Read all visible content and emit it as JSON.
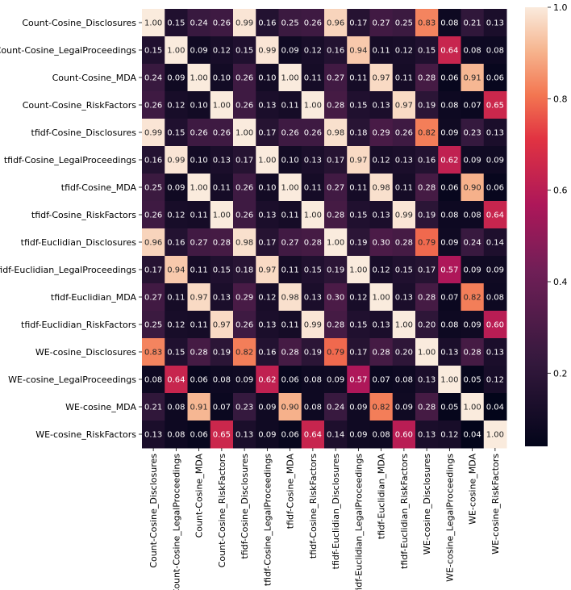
{
  "chart_data": {
    "type": "heatmap",
    "labels": [
      "Count-Cosine_Disclosures",
      "Count-Cosine_LegalProceedings",
      "Count-Cosine_MDA",
      "Count-Cosine_RiskFactors",
      "tfidf-Cosine_Disclosures",
      "tfidf-Cosine_LegalProceedings",
      "tfidf-Cosine_MDA",
      "tfidf-Cosine_RiskFactors",
      "tfidf-Euclidian_Disclosures",
      "tfidf-Euclidian_LegalProceedings",
      "tfidf-Euclidian_MDA",
      "tfidf-Euclidian_RiskFactors",
      "WE-cosine_Disclosures",
      "WE-cosine_LegalProceedings",
      "WE-cosine_MDA",
      "WE-cosine_RiskFactors"
    ],
    "values": [
      [
        1.0,
        0.15,
        0.24,
        0.26,
        0.99,
        0.16,
        0.25,
        0.26,
        0.96,
        0.17,
        0.27,
        0.25,
        0.83,
        0.08,
        0.21,
        0.13
      ],
      [
        0.15,
        1.0,
        0.09,
        0.12,
        0.15,
        0.99,
        0.09,
        0.12,
        0.16,
        0.94,
        0.11,
        0.12,
        0.15,
        0.64,
        0.08,
        0.08
      ],
      [
        0.24,
        0.09,
        1.0,
        0.1,
        0.26,
        0.1,
        1.0,
        0.11,
        0.27,
        0.11,
        0.97,
        0.11,
        0.28,
        0.06,
        0.91,
        0.06
      ],
      [
        0.26,
        0.12,
        0.1,
        1.0,
        0.26,
        0.13,
        0.11,
        1.0,
        0.28,
        0.15,
        0.13,
        0.97,
        0.19,
        0.08,
        0.07,
        0.65
      ],
      [
        0.99,
        0.15,
        0.26,
        0.26,
        1.0,
        0.17,
        0.26,
        0.26,
        0.98,
        0.18,
        0.29,
        0.26,
        0.82,
        0.09,
        0.23,
        0.13
      ],
      [
        0.16,
        0.99,
        0.1,
        0.13,
        0.17,
        1.0,
        0.1,
        0.13,
        0.17,
        0.97,
        0.12,
        0.13,
        0.16,
        0.62,
        0.09,
        0.09
      ],
      [
        0.25,
        0.09,
        1.0,
        0.11,
        0.26,
        0.1,
        1.0,
        0.11,
        0.27,
        0.11,
        0.98,
        0.11,
        0.28,
        0.06,
        0.9,
        0.06
      ],
      [
        0.26,
        0.12,
        0.11,
        1.0,
        0.26,
        0.13,
        0.11,
        1.0,
        0.28,
        0.15,
        0.13,
        0.99,
        0.19,
        0.08,
        0.08,
        0.64
      ],
      [
        0.96,
        0.16,
        0.27,
        0.28,
        0.98,
        0.17,
        0.27,
        0.28,
        1.0,
        0.19,
        0.3,
        0.28,
        0.79,
        0.09,
        0.24,
        0.14
      ],
      [
        0.17,
        0.94,
        0.11,
        0.15,
        0.18,
        0.97,
        0.11,
        0.15,
        0.19,
        1.0,
        0.12,
        0.15,
        0.17,
        0.57,
        0.09,
        0.09
      ],
      [
        0.27,
        0.11,
        0.97,
        0.13,
        0.29,
        0.12,
        0.98,
        0.13,
        0.3,
        0.12,
        1.0,
        0.13,
        0.28,
        0.07,
        0.82,
        0.08
      ],
      [
        0.25,
        0.12,
        0.11,
        0.97,
        0.26,
        0.13,
        0.11,
        0.99,
        0.28,
        0.15,
        0.13,
        1.0,
        0.2,
        0.08,
        0.09,
        0.6
      ],
      [
        0.83,
        0.15,
        0.28,
        0.19,
        0.82,
        0.16,
        0.28,
        0.19,
        0.79,
        0.17,
        0.28,
        0.2,
        1.0,
        0.13,
        0.28,
        0.13
      ],
      [
        0.08,
        0.64,
        0.06,
        0.08,
        0.09,
        0.62,
        0.06,
        0.08,
        0.09,
        0.57,
        0.07,
        0.08,
        0.13,
        1.0,
        0.05,
        0.12
      ],
      [
        0.21,
        0.08,
        0.91,
        0.07,
        0.23,
        0.09,
        0.9,
        0.08,
        0.24,
        0.09,
        0.82,
        0.09,
        0.28,
        0.05,
        1.0,
        0.04
      ],
      [
        0.13,
        0.08,
        0.06,
        0.65,
        0.13,
        0.09,
        0.06,
        0.64,
        0.14,
        0.09,
        0.08,
        0.6,
        0.13,
        0.12,
        0.04,
        1.0
      ]
    ],
    "colorbar": {
      "min": 0.04,
      "max": 1.0,
      "ticks": [
        "0.2",
        "0.4",
        "0.6",
        "0.8",
        "1.0"
      ],
      "colormap": "rocket"
    },
    "title": "",
    "xlabel": "",
    "ylabel": ""
  }
}
